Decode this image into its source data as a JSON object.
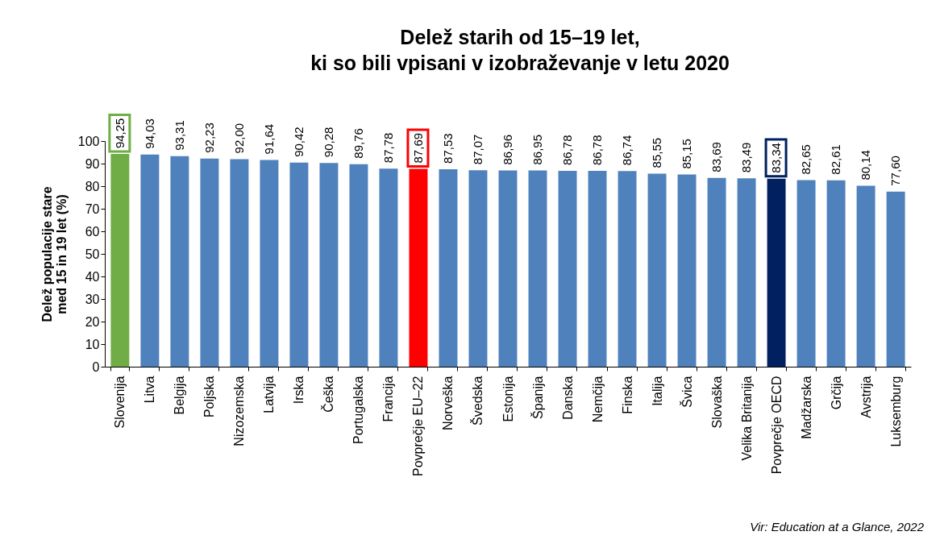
{
  "chart_data": {
    "type": "bar",
    "title": "Delež starih od 15–19 let, ki so bili vpisani v izobraževanje v letu 2020",
    "ylabel": "Delež populacije stare med 15 in 19 let (%)",
    "categories": [
      "Slovenija",
      "Litva",
      "Belgija",
      "Poljska",
      "Nizozemska",
      "Latvija",
      "Irska",
      "Češka",
      "Portugalska",
      "Francija",
      "Povprečje EU–22",
      "Norveška",
      "Švedska",
      "Estonija",
      "Španija",
      "Danska",
      "Nemčija",
      "Finska",
      "Italija",
      "Švica",
      "Slovaška",
      "Velika Britanija",
      "Povprečje OECD",
      "Madžarska",
      "Grčija",
      "Avstrija",
      "Luksemburg"
    ],
    "values": [
      94.25,
      94.03,
      93.31,
      92.23,
      92.0,
      91.64,
      90.42,
      90.28,
      89.76,
      87.78,
      87.69,
      87.53,
      87.07,
      86.96,
      86.95,
      86.78,
      86.78,
      86.74,
      85.55,
      85.15,
      83.69,
      83.49,
      83.34,
      82.65,
      82.61,
      80.14,
      77.6
    ],
    "value_labels": [
      "94,25",
      "94,03",
      "93,31",
      "92,23",
      "92,00",
      "91,64",
      "90,42",
      "90,28",
      "89,76",
      "87,78",
      "87,69",
      "87,53",
      "87,07",
      "86,96",
      "86,95",
      "86,78",
      "86,78",
      "86,74",
      "85,55",
      "85,15",
      "83,69",
      "83,49",
      "83,34",
      "82,65",
      "82,61",
      "80,14",
      "77,60"
    ],
    "colors": [
      "#70ad47",
      "#4f81bd",
      "#4f81bd",
      "#4f81bd",
      "#4f81bd",
      "#4f81bd",
      "#4f81bd",
      "#4f81bd",
      "#4f81bd",
      "#4f81bd",
      "#ff0000",
      "#4f81bd",
      "#4f81bd",
      "#4f81bd",
      "#4f81bd",
      "#4f81bd",
      "#4f81bd",
      "#4f81bd",
      "#4f81bd",
      "#4f81bd",
      "#4f81bd",
      "#4f81bd",
      "#002060",
      "#4f81bd",
      "#4f81bd",
      "#4f81bd",
      "#4f81bd"
    ],
    "ylim": [
      0,
      100
    ],
    "yticks": [
      0,
      10,
      20,
      30,
      40,
      50,
      60,
      70,
      80,
      90,
      100
    ],
    "grid": false,
    "annotations": [
      "Vir: Education at a Glance, 2022"
    ]
  }
}
